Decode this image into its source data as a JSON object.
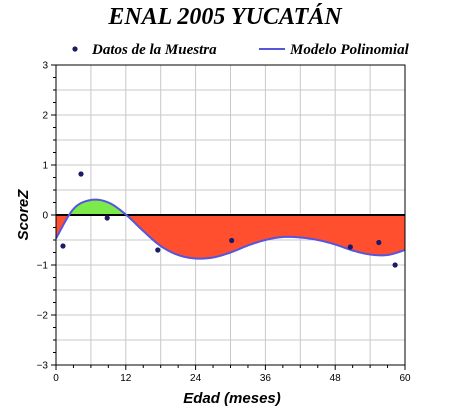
{
  "chart_data": {
    "type": "scatter",
    "title": "ENAL 2005 YUCATÁN",
    "xlabel": "Edad (meses)",
    "ylabel": "ScoreZ",
    "xlim": [
      0,
      60
    ],
    "ylim": [
      -3,
      3
    ],
    "x_ticks": [
      0,
      12,
      24,
      36,
      48,
      60
    ],
    "y_ticks": [
      -3,
      -2,
      -1,
      0,
      1,
      2,
      3
    ],
    "x_tick_labels": [
      "0",
      "12",
      "24",
      "36",
      "48",
      "60"
    ],
    "y_tick_labels": [
      "−3",
      "−2",
      "−1",
      "0",
      "1",
      "2",
      "3"
    ],
    "grid": true,
    "legend_position": "top",
    "series": [
      {
        "name": "Datos de la Muestra",
        "kind": "scatter",
        "color": "#1a1a66",
        "x": [
          1.2,
          4.3,
          8.8,
          17.5,
          30.2,
          50.6,
          55.5,
          58.3
        ],
        "y": [
          -0.62,
          0.82,
          -0.06,
          -0.7,
          -0.51,
          -0.64,
          -0.55,
          -1.0
        ]
      },
      {
        "name": "Modelo Polinomial",
        "kind": "line",
        "color": "#5555dd",
        "x": [
          0,
          3,
          6,
          9,
          12,
          15,
          18,
          21,
          24,
          27,
          30,
          33,
          36,
          39,
          42,
          45,
          48,
          51,
          54,
          57,
          60
        ],
        "y": [
          -0.47,
          0.12,
          0.3,
          0.25,
          0.01,
          -0.32,
          -0.62,
          -0.8,
          -0.87,
          -0.85,
          -0.75,
          -0.61,
          -0.5,
          -0.44,
          -0.45,
          -0.5,
          -0.59,
          -0.71,
          -0.79,
          -0.8,
          -0.7
        ]
      }
    ],
    "fill_above_color": "#7dea4b",
    "fill_below_color": "#ff4f2f"
  }
}
